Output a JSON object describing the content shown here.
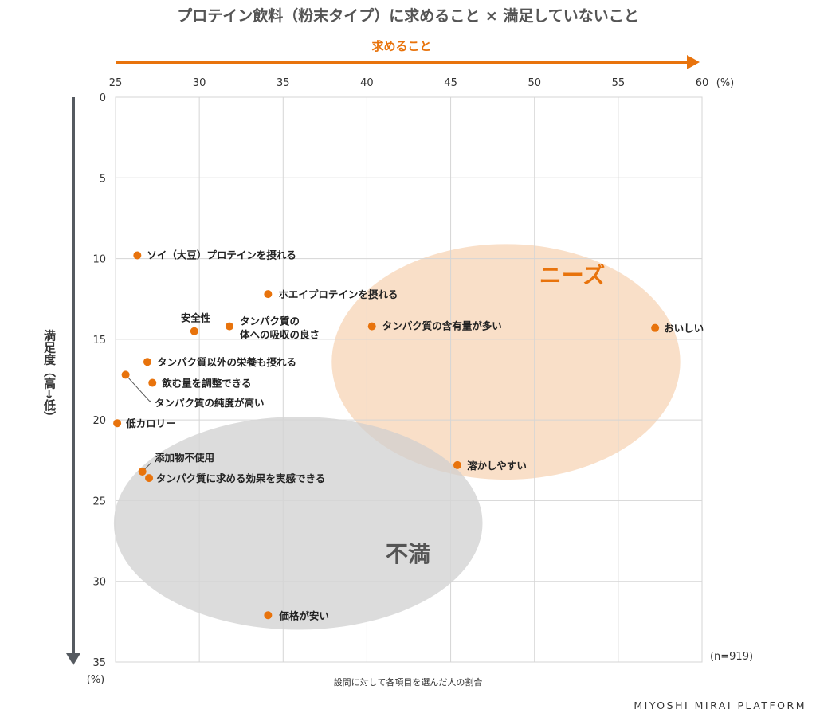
{
  "title": "プロテイン飲料（粉末タイプ）に求めること × 満足していないこと",
  "top_axis_label": "求めること",
  "left_axis_label": "満足度（高→低）",
  "x_unit": "(%)",
  "y_unit": "(%)",
  "sample_size": "(n=919)",
  "footnote": "設問に対して各項目を選んだ人の割合",
  "brand": "MIYOSHI MIRAI PLATFORM",
  "colors": {
    "accent": "#e8730c",
    "needs_fill": "#f8dcc2",
    "dissatisfied_fill": "#cfcfcf",
    "axis": "#555a60"
  },
  "chart_data": {
    "type": "scatter",
    "title": "プロテイン飲料（粉末タイプ）に求めること × 満足していないこと",
    "xlabel": "求めること",
    "ylabel": "満足度（高→低）",
    "xlim": [
      25,
      60
    ],
    "ylim": [
      0,
      35
    ],
    "y_inverted": true,
    "grid": true,
    "xticks": [
      "25",
      "30",
      "35",
      "40",
      "45",
      "50",
      "55",
      "60"
    ],
    "yticks": [
      "0",
      "5",
      "10",
      "15",
      "20",
      "25",
      "30",
      "35"
    ],
    "regions": [
      {
        "name": "ニーズ",
        "cx": 48.3,
        "cy": 16.4,
        "rx": 10.4,
        "ry": 7.3
      },
      {
        "name": "不満",
        "cx": 35.9,
        "cy": 26.4,
        "rx": 11.0,
        "ry": 6.6
      }
    ],
    "points": [
      {
        "label": "ソイ（大豆）プロテインを摂れる",
        "x": 26.3,
        "y": 9.8
      },
      {
        "label": "ホエイプロテインを摂れる",
        "x": 34.1,
        "y": 12.2
      },
      {
        "label": "安全性",
        "x": 29.7,
        "y": 14.5
      },
      {
        "label": "タンパク質の体への吸収の良さ",
        "x": 31.8,
        "y": 14.2
      },
      {
        "label": "タンパク質の含有量が多い",
        "x": 40.3,
        "y": 14.2
      },
      {
        "label": "おいしい",
        "x": 57.2,
        "y": 14.3
      },
      {
        "label": "タンパク質以外の栄養も摂れる",
        "x": 26.9,
        "y": 16.4
      },
      {
        "label": "飲む量を調整できる",
        "x": 27.2,
        "y": 17.7
      },
      {
        "label": "タンパク質の純度が高い",
        "x": 25.6,
        "y": 17.2
      },
      {
        "label": "低カロリー",
        "x": 25.1,
        "y": 20.2
      },
      {
        "label": "添加物不使用",
        "x": 26.6,
        "y": 23.2
      },
      {
        "label": "タンパク質に求める効果を実感できる",
        "x": 27.0,
        "y": 23.6
      },
      {
        "label": "溶かしやすい",
        "x": 45.4,
        "y": 22.8
      },
      {
        "label": "価格が安い",
        "x": 34.1,
        "y": 32.1
      }
    ]
  }
}
